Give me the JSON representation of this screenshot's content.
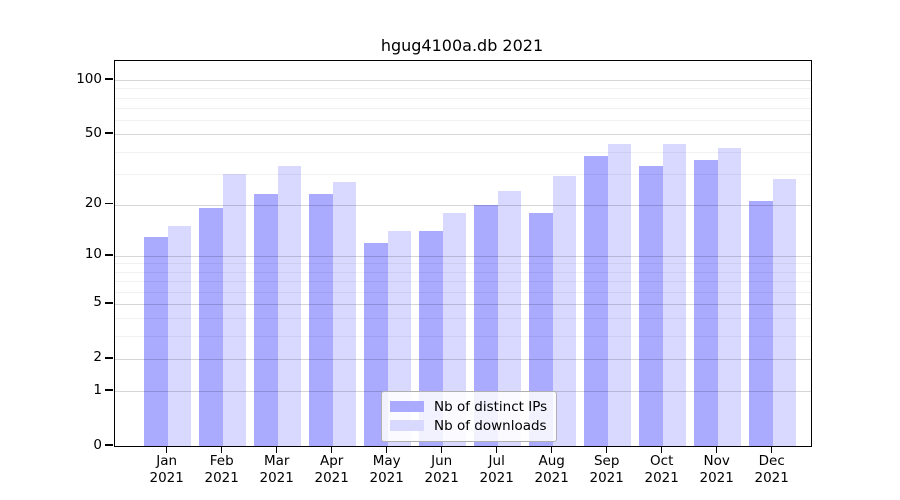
{
  "title": "hgug4100a.db 2021",
  "legend": {
    "items": [
      {
        "label": "Nb of distinct IPs",
        "color": "#aaaaff"
      },
      {
        "label": "Nb of downloads",
        "color": "#d9d9ff"
      }
    ]
  },
  "chart_data": {
    "type": "bar",
    "title": "hgug4100a.db 2021",
    "categories": [
      "Jan 2021",
      "Feb 2021",
      "Mar 2021",
      "Apr 2021",
      "May 2021",
      "Jun 2021",
      "Jul 2021",
      "Aug 2021",
      "Sep 2021",
      "Oct 2021",
      "Nov 2021",
      "Dec 2021"
    ],
    "series": [
      {
        "name": "Nb of distinct IPs",
        "color": "#aaaaff",
        "values": [
          13,
          19,
          23,
          23,
          12,
          14,
          20,
          18,
          38,
          33,
          36,
          21
        ]
      },
      {
        "name": "Nb of downloads",
        "color": "#d9d9ff",
        "values": [
          15,
          30,
          33,
          27,
          14,
          18,
          24,
          29,
          44,
          44,
          42,
          28
        ]
      }
    ],
    "xlabel": "",
    "ylabel": "",
    "y_scale": "log1p",
    "y_ticks": [
      0,
      1,
      2,
      5,
      10,
      20,
      50,
      100
    ],
    "y_minor_gridlines": [
      3,
      4,
      6,
      7,
      8,
      9,
      30,
      40,
      60,
      70,
      80,
      90
    ],
    "ylim": [
      0,
      127.4
    ],
    "grid": true,
    "legend_position": "lower center"
  }
}
